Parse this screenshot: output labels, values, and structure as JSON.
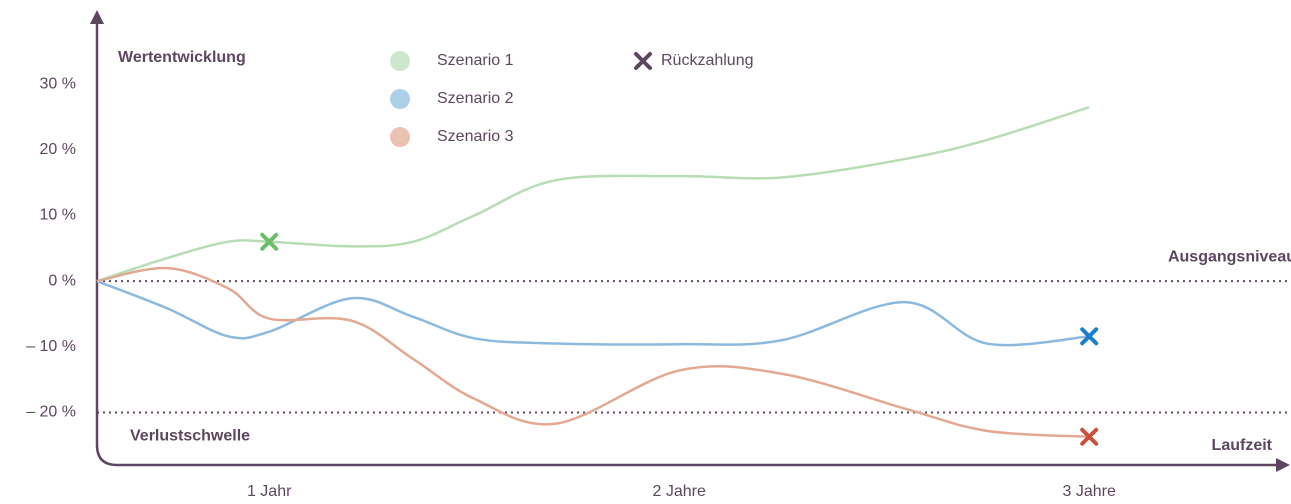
{
  "chart_data": {
    "type": "line",
    "y_axis_label": "Wertentwicklung",
    "x_axis_label": "Laufzeit",
    "x": [
      0.58,
      0.75,
      0.9,
      1,
      1.2,
      1.35,
      1.5,
      1.7,
      2,
      2.25,
      2.55,
      2.75,
      3
    ],
    "xlim": [
      0.58,
      3.48
    ],
    "xticks": [
      {
        "value": 1,
        "label": "1 Jahr"
      },
      {
        "value": 2,
        "label": "2 Jahre"
      },
      {
        "value": 3,
        "label": "3 Jahre"
      }
    ],
    "ylim": [
      -28,
      41
    ],
    "yticks": [
      {
        "value": 30,
        "label": "30 %"
      },
      {
        "value": 20,
        "label": "20 %"
      },
      {
        "value": 10,
        "label": "10 %"
      },
      {
        "value": 0,
        "label": "0 %"
      },
      {
        "value": -10,
        "label": "– 10 %"
      },
      {
        "value": -20,
        "label": "– 20 %"
      }
    ],
    "series": [
      {
        "name": "Szenario 1",
        "color": "#b7ddb5",
        "marker_color": "#6cbf6a",
        "values": [
          0,
          3.5,
          6,
          6,
          5.3,
          6,
          10,
          15.4,
          16,
          15.8,
          18.6,
          21.5,
          26.5
        ],
        "repayment": {
          "x": 1,
          "value": 6
        }
      },
      {
        "name": "Szenario 2",
        "color": "#8bbade",
        "marker_color": "#1a7fc8",
        "values": [
          0,
          -4.1,
          -8.4,
          -7.7,
          -2.6,
          -5.4,
          -8.7,
          -9.5,
          -9.6,
          -9,
          -3.2,
          -9.5,
          -8.4
        ],
        "repayment": {
          "x": 3,
          "value": -8.4
        }
      },
      {
        "name": "Szenario 3",
        "color": "#e2a891",
        "marker_color": "#c9503a",
        "values": [
          0,
          2,
          -1.1,
          -5.7,
          -6,
          -11.8,
          -17.9,
          -21.7,
          -13.6,
          -14.1,
          -19.4,
          -22.8,
          -23.7
        ],
        "repayment": {
          "x": 3,
          "value": -23.7
        }
      }
    ],
    "repayment_label": "Rückzahlung",
    "reference_lines": [
      {
        "value": 0,
        "label": "Ausgangsniveau"
      },
      {
        "value": -20,
        "label": "Verlustschwelle"
      }
    ]
  }
}
